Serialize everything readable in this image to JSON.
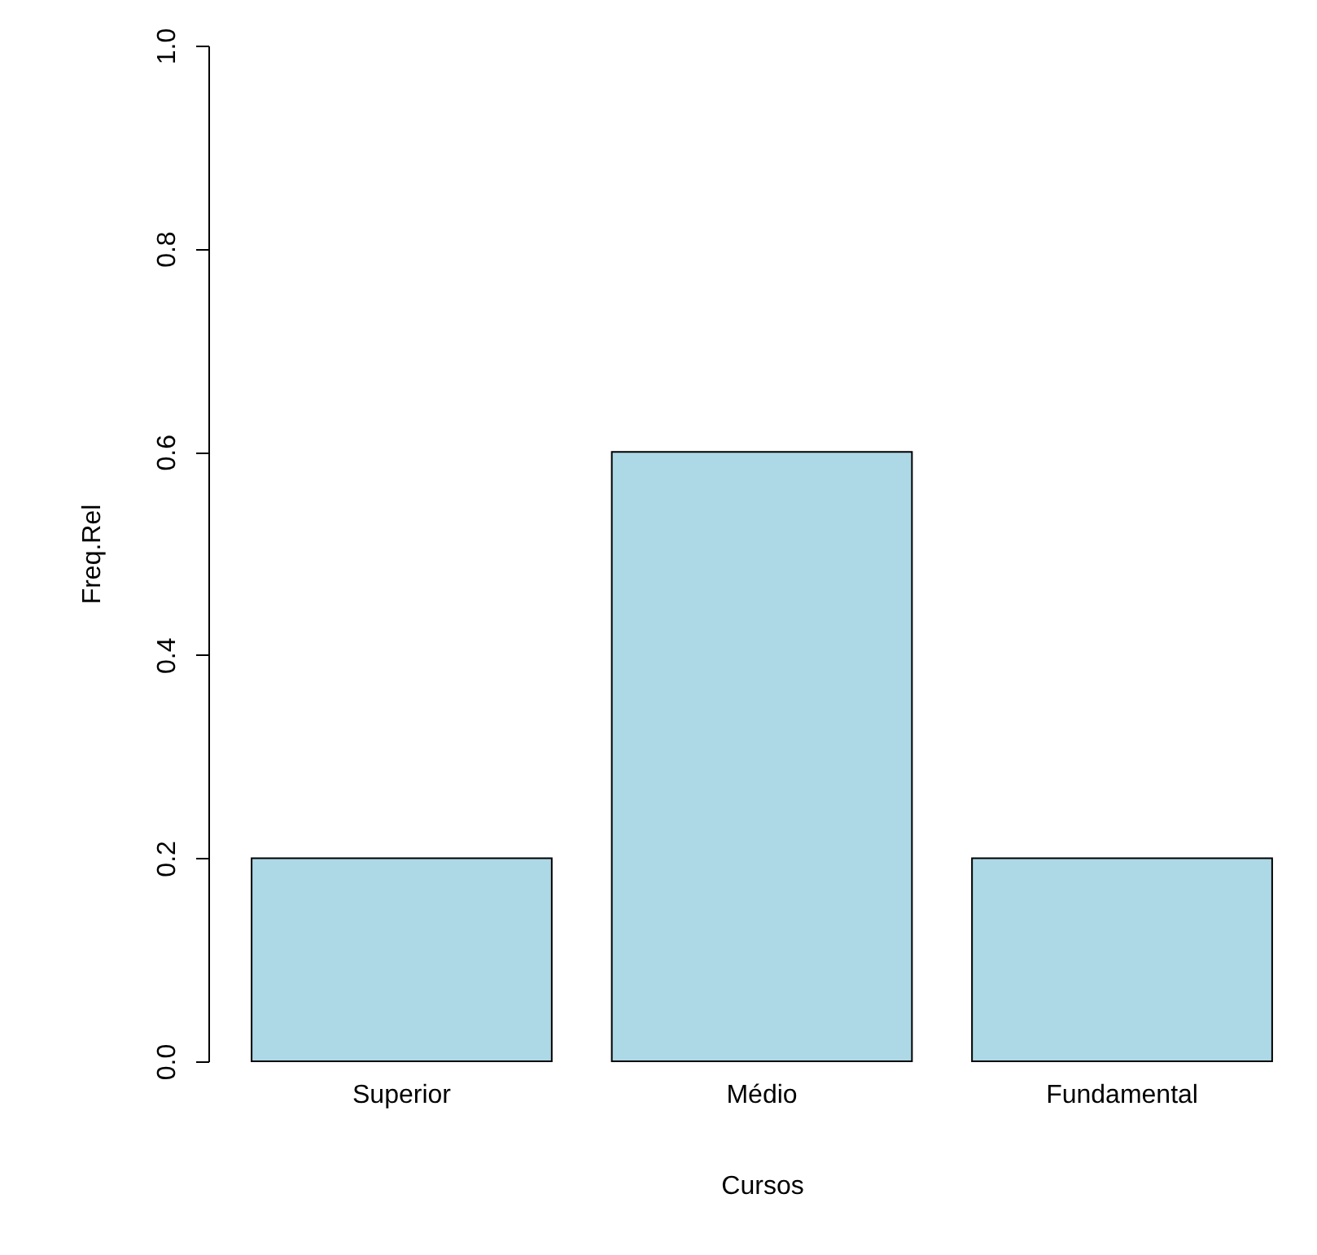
{
  "chart_data": {
    "type": "bar",
    "xlabel": "Cursos",
    "ylabel": "Freq.Rel",
    "categories": [
      "Superior",
      "Médio",
      "Fundamental"
    ],
    "values": [
      0.2,
      0.6,
      0.2
    ],
    "color": "#add8e6",
    "ylim": [
      0,
      1
    ],
    "yticks": [
      {
        "value": 0,
        "label": "0.0"
      },
      {
        "value": 0.2,
        "label": "0.2"
      },
      {
        "value": 0.4,
        "label": "0.4"
      },
      {
        "value": 0.6,
        "label": "0.6"
      },
      {
        "value": 0.8,
        "label": "0.8"
      },
      {
        "value": 1,
        "label": "1.0"
      }
    ],
    "grid": false
  }
}
